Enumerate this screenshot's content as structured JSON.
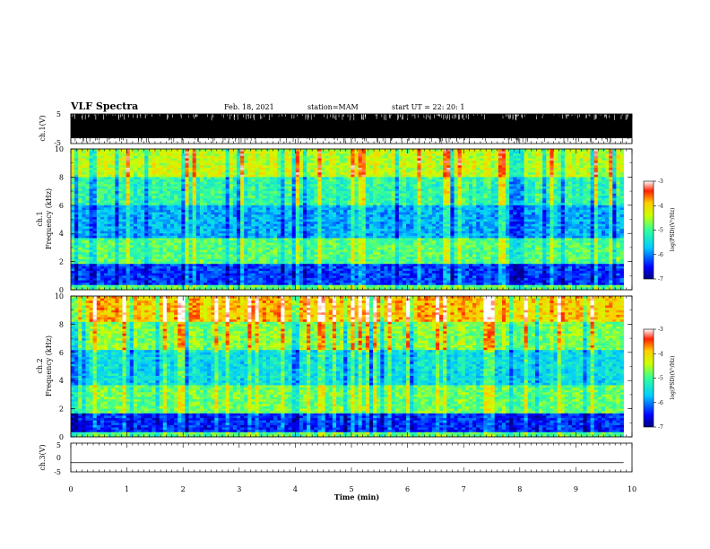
{
  "header": {
    "title": "VLF Spectra",
    "date": "Feb. 18, 2021",
    "station": "station=MAM",
    "start": "start UT =  22: 20: 1"
  },
  "chart_data": [
    {
      "type": "line",
      "name": "ch.1 waveform",
      "ylabel": "ch.1(V)",
      "ylim": [
        -5,
        5
      ],
      "yticks": [
        "5",
        "-5"
      ],
      "xlim": [
        0,
        10
      ],
      "note": "dense waveform, saturated between about -3 and 5 V"
    },
    {
      "type": "heatmap",
      "name": "ch.1 spectrogram",
      "ylabel_top": "ch.1",
      "ylabel": "Frequency (kHz)",
      "ylim": [
        0,
        10
      ],
      "yticks": [
        "0",
        "2",
        "4",
        "6",
        "8",
        "10"
      ],
      "xlim": [
        0,
        9.85
      ],
      "colorbar": {
        "label": "log(PSD)(V²/Hz)",
        "range": [
          -7,
          -3
        ],
        "ticks": [
          "-3",
          "-4",
          "-5",
          "-6",
          "-7"
        ]
      },
      "bands": [
        {
          "f": [
            0,
            0.4
          ],
          "level": -4.8
        },
        {
          "f": [
            0.4,
            1.8
          ],
          "level": -6.3
        },
        {
          "f": [
            1.8,
            3.6
          ],
          "level": -4.9
        },
        {
          "f": [
            3.6,
            6.0
          ],
          "level": -5.8
        },
        {
          "f": [
            6.0,
            8.0
          ],
          "level": -5.1
        },
        {
          "f": [
            8.0,
            10.0
          ],
          "level": -4.4
        }
      ]
    },
    {
      "type": "heatmap",
      "name": "ch.2 spectrogram",
      "ylabel_top": "ch.2",
      "ylabel": "Frequency (kHz)",
      "ylim": [
        0,
        10
      ],
      "yticks": [
        "0",
        "2",
        "4",
        "6",
        "8",
        "10"
      ],
      "xlim": [
        0,
        9.85
      ],
      "colorbar": {
        "label": "log(PSD)(V²/Hz)",
        "range": [
          -7,
          -3
        ],
        "ticks": [
          "-3",
          "-4",
          "-5",
          "-6",
          "-7"
        ]
      },
      "bands": [
        {
          "f": [
            0,
            0.3
          ],
          "level": -4.9
        },
        {
          "f": [
            0.3,
            1.7
          ],
          "level": -6.4
        },
        {
          "f": [
            1.7,
            3.7
          ],
          "level": -4.8
        },
        {
          "f": [
            3.7,
            6.2
          ],
          "level": -5.5
        },
        {
          "f": [
            6.2,
            8.2
          ],
          "level": -4.7
        },
        {
          "f": [
            8.2,
            10.0
          ],
          "level": -3.9
        }
      ]
    },
    {
      "type": "line",
      "name": "ch.3 waveform",
      "ylabel": "ch.3(V)",
      "ylim": [
        -5,
        5
      ],
      "yticks": [
        "5",
        "0",
        "-5"
      ],
      "xlim": [
        0,
        9.85
      ],
      "value": -1.8
    }
  ],
  "xaxis": {
    "label": "Time (min)",
    "range": [
      0,
      10
    ],
    "ticks": [
      "0",
      "1",
      "2",
      "3",
      "4",
      "5",
      "6",
      "7",
      "8",
      "9",
      "10"
    ]
  },
  "colors": {
    "axis": "#000000",
    "colormap": [
      "#00007f",
      "#0000ff",
      "#0080ff",
      "#00ffff",
      "#80ff80",
      "#ffff00",
      "#ff8000",
      "#ff0000",
      "#7f0000"
    ]
  }
}
